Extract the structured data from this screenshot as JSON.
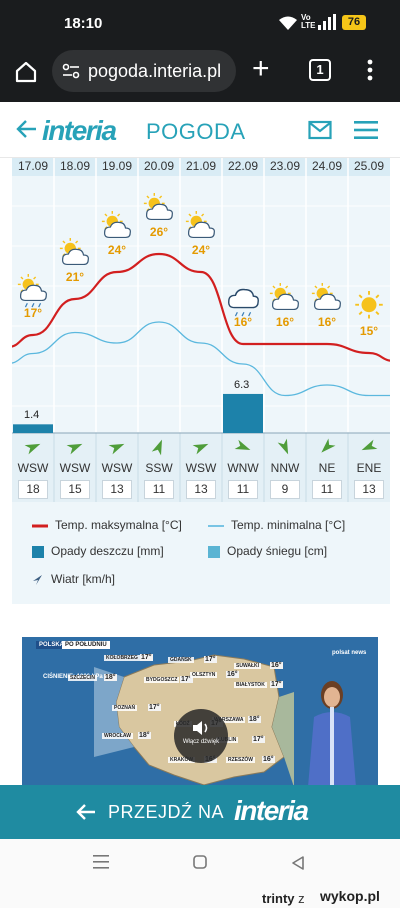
{
  "status_bar": {
    "time": "18:10",
    "lte_label": "Vo\nLTE",
    "battery": "76",
    "icons": [
      "wifi-icon",
      "signal-icon",
      "battery-icon"
    ]
  },
  "browser": {
    "url": "pogoda.interia.pl",
    "tab_count": "1"
  },
  "site": {
    "logo": "interia",
    "section": "POGODA"
  },
  "forecast": {
    "days": [
      {
        "date": "17.09",
        "max": "17°",
        "icon": "partly-cloudy-rain",
        "wind_dir": "WSW",
        "wind_speed": "18"
      },
      {
        "date": "18.09",
        "max": "21°",
        "icon": "partly-cloudy",
        "wind_dir": "WSW",
        "wind_speed": "15"
      },
      {
        "date": "19.09",
        "max": "24°",
        "icon": "partly-cloudy",
        "wind_dir": "WSW",
        "wind_speed": "13"
      },
      {
        "date": "20.09",
        "max": "26°",
        "icon": "partly-cloudy",
        "wind_dir": "SSW",
        "wind_speed": "11"
      },
      {
        "date": "21.09",
        "max": "24°",
        "icon": "partly-cloudy",
        "wind_dir": "WSW",
        "wind_speed": "13"
      },
      {
        "date": "22.09",
        "max": "16°",
        "icon": "cloud-rain",
        "wind_dir": "WNW",
        "wind_speed": "11"
      },
      {
        "date": "23.09",
        "max": "16°",
        "icon": "partly-cloudy",
        "wind_dir": "NNW",
        "wind_speed": "9"
      },
      {
        "date": "24.09",
        "max": "16°",
        "icon": "partly-cloudy",
        "wind_dir": "NE",
        "wind_speed": "11"
      },
      {
        "date": "25.09",
        "max": "15°",
        "icon": "sun",
        "wind_dir": "ENE",
        "wind_speed": "13"
      }
    ],
    "precip_labels": [
      "1.4",
      "6.3"
    ]
  },
  "chart_data": {
    "type": "line",
    "categories": [
      "17.09",
      "18.09",
      "19.09",
      "20.09",
      "21.09",
      "22.09",
      "23.09",
      "24.09",
      "25.09"
    ],
    "series": [
      {
        "name": "Temp. maksymalna [°C]",
        "values": [
          17,
          21,
          24,
          26,
          24,
          16,
          16,
          16,
          15
        ],
        "color": "#d21f1f"
      },
      {
        "name": "Temp. minimalna [°C]",
        "values": [
          9,
          11,
          10,
          12,
          10,
          8,
          5,
          6,
          5
        ],
        "color": "#5bb8de"
      },
      {
        "name": "Opady deszczu [mm]",
        "values": [
          1.4,
          0,
          0,
          0,
          0,
          6.3,
          0,
          0,
          0
        ],
        "color": "#1d82aa",
        "type": "bar"
      }
    ],
    "wind_directions": [
      "WSW",
      "WSW",
      "WSW",
      "SSW",
      "WSW",
      "WNW",
      "NNW",
      "NE",
      "ENE"
    ],
    "wind_speeds": [
      18,
      15,
      13,
      11,
      13,
      11,
      9,
      11,
      13
    ],
    "legend": [
      {
        "label": "Temp. maksymalna [°C]",
        "color": "#d21f1f"
      },
      {
        "label": "Temp. minimalna [°C]",
        "color": "#5bb8de"
      },
      {
        "label": "Opady deszczu [mm]",
        "color": "#1d82aa"
      },
      {
        "label": "Opady śniegu [cm]",
        "color": "#5ab4d3"
      },
      {
        "label": "Wiatr [km/h]",
        "color": "#3e5f82"
      }
    ],
    "grid": true
  },
  "video": {
    "badge_region": "POLSKA",
    "badge_time": "PO POŁUDNIU",
    "pressure": "CIŚNIENIE: 1006 hPa",
    "unmute_label": "Włącz dźwięk",
    "cities": [
      {
        "name": "KOŁOBRZEG",
        "temp": "17°"
      },
      {
        "name": "GDAŃSK",
        "temp": "17°"
      },
      {
        "name": "SUWAŁKI",
        "temp": "16°"
      },
      {
        "name": "SZCZECIN",
        "temp": "18°"
      },
      {
        "name": "BYDGOSZCZ",
        "temp": "17°"
      },
      {
        "name": "OLSZTYN",
        "temp": "16°"
      },
      {
        "name": "BIAŁYSTOK",
        "temp": "17°"
      },
      {
        "name": "WARSZAWA",
        "temp": "18°"
      },
      {
        "name": "POZNAŃ",
        "temp": "17°"
      },
      {
        "name": "ŁÓDŹ",
        "temp": "17°"
      },
      {
        "name": "LUBLIN",
        "temp": "17°"
      },
      {
        "name": "WROCŁAW",
        "temp": "18°"
      },
      {
        "name": "KRAKÓW",
        "temp": "16°"
      },
      {
        "name": "RZESZÓW",
        "temp": "16°"
      }
    ],
    "channel": "polsat news"
  },
  "banner": {
    "label": "PRZEJDŹ NA",
    "logo": "interia"
  },
  "watermark": {
    "user": "trinty",
    "prefix": "z",
    "site": "wykop.pl"
  }
}
